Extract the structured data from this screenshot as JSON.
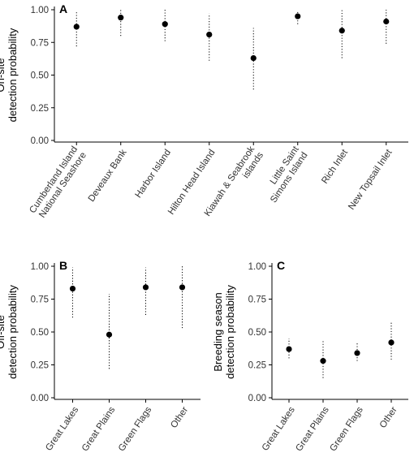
{
  "chart_data": [
    {
      "panel": "A",
      "type": "scatter",
      "ylabel": "On-site\ndetection probability",
      "xlabel": "",
      "ylim": [
        0,
        1
      ],
      "yticks": [
        "0.00",
        "0.25",
        "0.50",
        "0.75",
        "1.00"
      ],
      "categories": [
        "Cumberland Island\nNational Seashore",
        "Deveaux Bank",
        "Harbor Island",
        "Hilton Head Island",
        "Kiawah & Seabrook\nislands",
        "Little Saint\nSimons Island",
        "Rich Inlet",
        "New Topsail Inlet"
      ],
      "values": [
        0.87,
        0.94,
        0.89,
        0.81,
        0.63,
        0.95,
        0.84,
        0.91
      ],
      "lower": [
        0.72,
        0.8,
        0.76,
        0.61,
        0.39,
        0.89,
        0.63,
        0.74
      ],
      "upper": [
        0.99,
        1.0,
        1.0,
        0.97,
        0.86,
        0.99,
        1.0,
        1.0
      ]
    },
    {
      "panel": "B",
      "type": "scatter",
      "ylabel": "Off-site\ndetection probability",
      "xlabel": "",
      "ylim": [
        0,
        1
      ],
      "yticks": [
        "0.00",
        "0.25",
        "0.50",
        "0.75",
        "1.00"
      ],
      "categories": [
        "Great Lakes",
        "Great Plains",
        "Green Flags",
        "Other"
      ],
      "values": [
        0.83,
        0.48,
        0.84,
        0.84
      ],
      "lower": [
        0.61,
        0.22,
        0.63,
        0.53
      ],
      "upper": [
        0.99,
        0.79,
        0.99,
        1.0
      ]
    },
    {
      "panel": "C",
      "type": "scatter",
      "ylabel": "Breeding season\ndetection probability",
      "xlabel": "",
      "ylim": [
        0,
        1
      ],
      "yticks": [
        "0.00",
        "0.25",
        "0.50",
        "0.75",
        "1.00"
      ],
      "categories": [
        "Great Lakes",
        "Great Plains",
        "Green Flags",
        "Other"
      ],
      "values": [
        0.37,
        0.28,
        0.34,
        0.42
      ],
      "lower": [
        0.3,
        0.15,
        0.28,
        0.29
      ],
      "upper": [
        0.45,
        0.43,
        0.42,
        0.57
      ]
    }
  ]
}
